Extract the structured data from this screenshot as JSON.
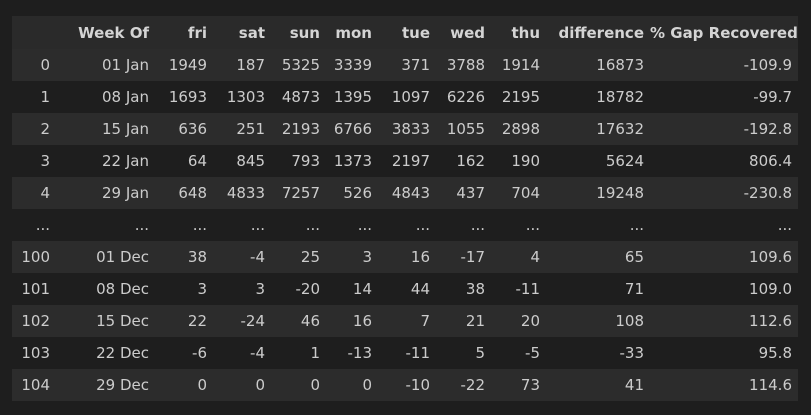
{
  "table": {
    "columns": [
      "",
      "Week Of",
      "fri",
      "sat",
      "sun",
      "mon",
      "tue",
      "wed",
      "thu",
      "difference",
      "% Gap Recovered"
    ],
    "rows": [
      [
        "0",
        "01 Jan",
        "1949",
        "187",
        "5325",
        "3339",
        "371",
        "3788",
        "1914",
        "16873",
        "-109.9"
      ],
      [
        "1",
        "08 Jan",
        "1693",
        "1303",
        "4873",
        "1395",
        "1097",
        "6226",
        "2195",
        "18782",
        "-99.7"
      ],
      [
        "2",
        "15 Jan",
        "636",
        "251",
        "2193",
        "6766",
        "3833",
        "1055",
        "2898",
        "17632",
        "-192.8"
      ],
      [
        "3",
        "22 Jan",
        "64",
        "845",
        "793",
        "1373",
        "2197",
        "162",
        "190",
        "5624",
        "806.4"
      ],
      [
        "4",
        "29 Jan",
        "648",
        "4833",
        "7257",
        "526",
        "4843",
        "437",
        "704",
        "19248",
        "-230.8"
      ],
      [
        "...",
        "...",
        "...",
        "...",
        "...",
        "...",
        "...",
        "...",
        "...",
        "...",
        "..."
      ],
      [
        "100",
        "01 Dec",
        "38",
        "-4",
        "25",
        "3",
        "16",
        "-17",
        "4",
        "65",
        "109.6"
      ],
      [
        "101",
        "08 Dec",
        "3",
        "3",
        "-20",
        "14",
        "44",
        "38",
        "-11",
        "71",
        "109.0"
      ],
      [
        "102",
        "15 Dec",
        "22",
        "-24",
        "46",
        "16",
        "7",
        "21",
        "20",
        "108",
        "112.6"
      ],
      [
        "103",
        "22 Dec",
        "-6",
        "-4",
        "1",
        "-13",
        "-11",
        "5",
        "-5",
        "-33",
        "95.8"
      ],
      [
        "104",
        "29 Dec",
        "0",
        "0",
        "0",
        "0",
        "-10",
        "-22",
        "73",
        "41",
        "114.6"
      ]
    ]
  }
}
